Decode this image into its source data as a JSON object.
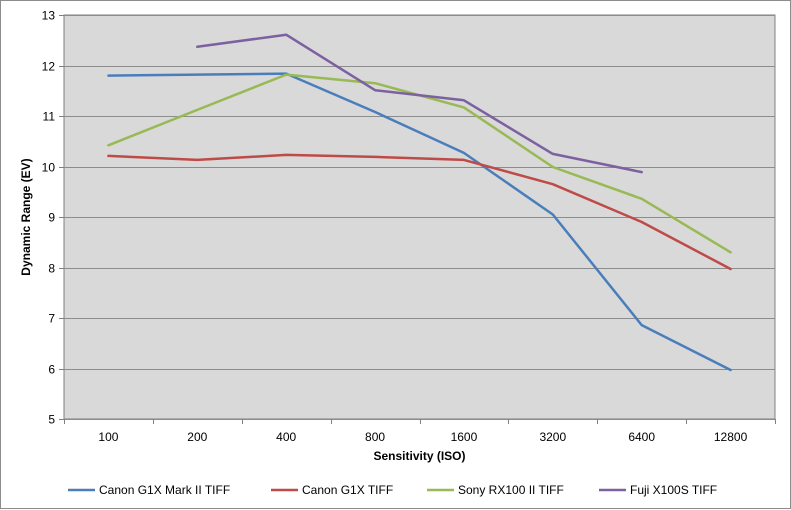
{
  "chart_data": {
    "type": "line",
    "title": "",
    "xlabel": "Sensitivity (ISO)",
    "ylabel": "Dynamic Range (EV)",
    "categories": [
      "100",
      "200",
      "400",
      "800",
      "1600",
      "3200",
      "6400",
      "12800"
    ],
    "ylim": [
      5,
      13
    ],
    "yticks": [
      5,
      6,
      7,
      8,
      9,
      10,
      11,
      12,
      13
    ],
    "grid": true,
    "legend_position": "bottom",
    "plot_background": "#d9d9d9",
    "series": [
      {
        "name": "Canon G1X Mark II TIFF",
        "color": "#4a7ebb",
        "values": [
          11.8,
          11.82,
          11.84,
          11.08,
          10.27,
          9.05,
          6.86,
          5.97
        ]
      },
      {
        "name": "Canon G1X TIFF",
        "color": "#be4b48",
        "values": [
          10.21,
          10.13,
          10.23,
          10.19,
          10.13,
          9.65,
          8.9,
          7.97
        ]
      },
      {
        "name": "Sony RX100 II TIFF",
        "color": "#98b954",
        "values": [
          10.42,
          11.12,
          11.82,
          11.65,
          11.17,
          9.99,
          9.36,
          8.3
        ]
      },
      {
        "name": "Fuji X100S TIFF",
        "color": "#7d60a0",
        "values": [
          null,
          12.37,
          12.61,
          11.51,
          11.31,
          10.25,
          9.89,
          null
        ]
      }
    ]
  }
}
